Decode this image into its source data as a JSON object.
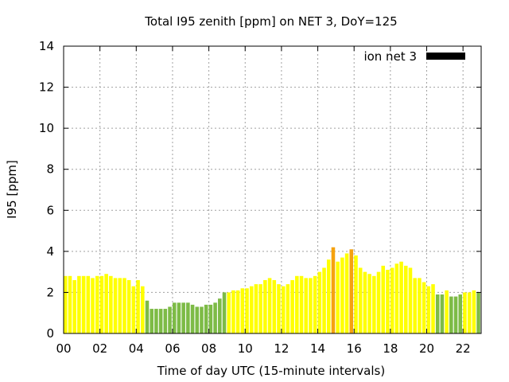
{
  "chart_data": {
    "type": "bar",
    "title": "Total I95 zenith [ppm] on NET 3, DoY=125",
    "xlabel": "Time of day UTC (15-minute intervals)",
    "ylabel": "I95 [ppm]",
    "xlim": [
      0,
      23
    ],
    "ylim": [
      0,
      14
    ],
    "x_ticks": [
      "00",
      "02",
      "04",
      "06",
      "08",
      "10",
      "12",
      "14",
      "16",
      "18",
      "20",
      "22"
    ],
    "y_ticks": [
      "0",
      "2",
      "4",
      "6",
      "8",
      "10",
      "12",
      "14"
    ],
    "grid": true,
    "legend": {
      "label": "ion net 3",
      "position": "top-right",
      "color": "#000000"
    },
    "bar_interval_hours": 0.25,
    "colors": {
      "yellow": "#ffff00",
      "green": "#7dbb46",
      "orange": "#f5a20f"
    },
    "values": [
      2.8,
      2.8,
      2.6,
      2.8,
      2.8,
      2.8,
      2.7,
      2.8,
      2.8,
      2.9,
      2.8,
      2.7,
      2.7,
      2.7,
      2.6,
      2.3,
      2.6,
      2.3,
      1.6,
      1.2,
      1.2,
      1.2,
      1.2,
      1.3,
      1.5,
      1.5,
      1.5,
      1.5,
      1.4,
      1.3,
      1.3,
      1.4,
      1.4,
      1.5,
      1.7,
      2.0,
      2.0,
      2.1,
      2.1,
      2.2,
      2.2,
      2.3,
      2.4,
      2.4,
      2.6,
      2.7,
      2.6,
      2.4,
      2.3,
      2.4,
      2.6,
      2.8,
      2.8,
      2.7,
      2.7,
      2.8,
      3.0,
      3.2,
      3.6,
      4.2,
      3.5,
      3.7,
      3.9,
      4.1,
      3.8,
      3.2,
      3.0,
      2.9,
      2.8,
      3.0,
      3.3,
      3.1,
      3.2,
      3.4,
      3.5,
      3.3,
      3.2,
      2.7,
      2.7,
      2.5,
      2.3,
      2.4,
      1.9,
      1.9,
      2.1,
      1.8,
      1.8,
      1.9,
      2.0,
      2.0,
      2.1,
      2.0
    ],
    "bar_colors": [
      "yellow",
      "yellow",
      "yellow",
      "yellow",
      "yellow",
      "yellow",
      "yellow",
      "yellow",
      "yellow",
      "yellow",
      "yellow",
      "yellow",
      "yellow",
      "yellow",
      "yellow",
      "yellow",
      "yellow",
      "yellow",
      "green",
      "green",
      "green",
      "green",
      "green",
      "green",
      "green",
      "green",
      "green",
      "green",
      "green",
      "green",
      "green",
      "green",
      "green",
      "green",
      "green",
      "green",
      "yellow",
      "yellow",
      "yellow",
      "yellow",
      "yellow",
      "yellow",
      "yellow",
      "yellow",
      "yellow",
      "yellow",
      "yellow",
      "yellow",
      "yellow",
      "yellow",
      "yellow",
      "yellow",
      "yellow",
      "yellow",
      "yellow",
      "yellow",
      "yellow",
      "yellow",
      "yellow",
      "orange",
      "yellow",
      "yellow",
      "yellow",
      "orange",
      "yellow",
      "yellow",
      "yellow",
      "yellow",
      "yellow",
      "yellow",
      "yellow",
      "yellow",
      "yellow",
      "yellow",
      "yellow",
      "yellow",
      "yellow",
      "yellow",
      "yellow",
      "yellow",
      "yellow",
      "yellow",
      "green",
      "green",
      "yellow",
      "green",
      "green",
      "green",
      "yellow",
      "yellow",
      "yellow",
      "green"
    ]
  }
}
